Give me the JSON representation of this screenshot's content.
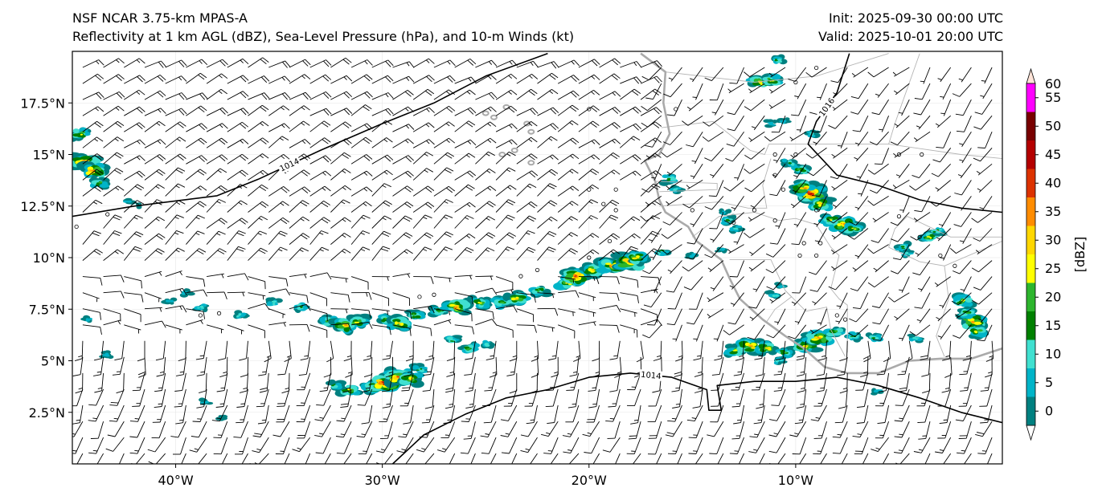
{
  "titles": {
    "left_line1": "NSF NCAR 3.75-km MPAS-A",
    "left_line2": "Reflectivity at 1 km AGL (dBZ), Sea-Level Pressure (hPa), and 10-m Winds (kt)",
    "right_line1": "Init: 2025-09-30 00:00 UTC",
    "right_line2": "Valid: 2025-10-01 20:00 UTC"
  },
  "map": {
    "lon_range": [
      -45,
      0
    ],
    "lat_range": [
      0,
      20
    ],
    "lon_ticks": [
      {
        "value": -40,
        "label": "40°W"
      },
      {
        "value": -30,
        "label": "30°W"
      },
      {
        "value": -20,
        "label": "20°W"
      },
      {
        "value": -10,
        "label": "10°W"
      }
    ],
    "lat_ticks": [
      {
        "value": 2.5,
        "label": "2.5°N"
      },
      {
        "value": 5,
        "label": "5°N"
      },
      {
        "value": 7.5,
        "label": "7.5°N"
      },
      {
        "value": 10,
        "label": "10°N"
      },
      {
        "value": 12.5,
        "label": "12.5°N"
      },
      {
        "value": 15,
        "label": "15°N"
      },
      {
        "value": 17.5,
        "label": "17.5°N"
      }
    ],
    "pressure_contours": [
      {
        "label": "1014",
        "points": [
          [
            -45,
            12.0
          ],
          [
            -42,
            12.5
          ],
          [
            -38,
            13.0
          ],
          [
            -36,
            13.8
          ],
          [
            -33,
            15.2
          ],
          [
            -30,
            16.5
          ],
          [
            -27.5,
            17.5
          ],
          [
            -25,
            18.8
          ],
          [
            -22,
            19.9
          ]
        ]
      },
      {
        "label": "1014",
        "points": [
          [
            -29.5,
            0
          ],
          [
            -28,
            1.4
          ],
          [
            -26,
            2.4
          ],
          [
            -24,
            3.2
          ],
          [
            -22,
            3.6
          ],
          [
            -20,
            4.2
          ],
          [
            -18,
            4.4
          ],
          [
            -16,
            4.2
          ],
          [
            -14.3,
            3.6
          ],
          [
            -14.2,
            2.6
          ],
          [
            -13.6,
            2.6
          ],
          [
            -13.8,
            3.8
          ],
          [
            -12,
            4.0
          ],
          [
            -10,
            4.0
          ],
          [
            -8,
            4.2
          ],
          [
            -6,
            3.8
          ],
          [
            -4,
            3.2
          ],
          [
            -2,
            2.5
          ],
          [
            0,
            2.0
          ]
        ]
      },
      {
        "label": "1016",
        "points": [
          [
            -7.4,
            19.9
          ],
          [
            -8.0,
            18.0
          ],
          [
            -9.0,
            16.6
          ],
          [
            -9.4,
            15.5
          ],
          [
            -8.0,
            14.0
          ],
          [
            -6.0,
            13.5
          ],
          [
            -4.0,
            12.8
          ],
          [
            -2.0,
            12.4
          ],
          [
            0,
            12.2
          ]
        ]
      }
    ],
    "coastlines": [
      [
        [
          -17.5,
          19.9
        ],
        [
          -16.3,
          19.0
        ],
        [
          -16.4,
          17.5
        ],
        [
          -16.1,
          16.0
        ],
        [
          -16.6,
          15.0
        ],
        [
          -17.3,
          14.7
        ],
        [
          -16.8,
          13.7
        ],
        [
          -16.6,
          12.8
        ],
        [
          -16.3,
          12.2
        ],
        [
          -15.2,
          11.5
        ],
        [
          -14.8,
          10.8
        ],
        [
          -13.6,
          9.9
        ],
        [
          -13.2,
          9.0
        ],
        [
          -12.7,
          8.0
        ],
        [
          -11.6,
          7.0
        ],
        [
          -10.5,
          6.2
        ],
        [
          -9.6,
          5.6
        ],
        [
          -8.6,
          4.7
        ],
        [
          -7.5,
          4.4
        ],
        [
          -6.0,
          4.4
        ],
        [
          -4.5,
          5.0
        ],
        [
          -3.0,
          5.1
        ],
        [
          -1.5,
          5.1
        ],
        [
          0,
          5.6
        ]
      ]
    ],
    "islands": [
      [
        -24.6,
        16.8
      ],
      [
        -23.0,
        16.5
      ],
      [
        -22.8,
        16.1
      ],
      [
        -24.2,
        15.0
      ],
      [
        -23.6,
        15.2
      ],
      [
        -22.8,
        14.6
      ],
      [
        -25.0,
        17.0
      ],
      [
        -24.0,
        17.3
      ]
    ],
    "borders": [
      [
        [
          -16.3,
          19.0
        ],
        [
          -12,
          18.5
        ],
        [
          -9,
          18.8
        ],
        [
          -5.5,
          19.9
        ]
      ],
      [
        [
          -16.5,
          16.3
        ],
        [
          -14,
          16.6
        ],
        [
          -12.2,
          15.2
        ],
        [
          -11.5,
          15.0
        ],
        [
          -11.3,
          15.5
        ],
        [
          -5.5,
          15.5
        ],
        [
          -5.2,
          16.5
        ],
        [
          -4,
          19.9
        ]
      ],
      [
        [
          -16.8,
          13.7
        ],
        [
          -13.8,
          13.6
        ],
        [
          -13.8,
          13.3
        ],
        [
          -16.6,
          13.2
        ]
      ],
      [
        [
          -16.6,
          12.5
        ],
        [
          -13.7,
          12.7
        ],
        [
          -12.3,
          12.4
        ],
        [
          -11.4,
          12.4
        ],
        [
          -11.6,
          13.5
        ],
        [
          -11.2,
          14.8
        ]
      ],
      [
        [
          -15.0,
          11.0
        ],
        [
          -13.7,
          12.0
        ],
        [
          -12.0,
          12.2
        ],
        [
          -10.8,
          11.8
        ],
        [
          -10.0,
          11.9
        ],
        [
          -9.0,
          11.6
        ],
        [
          -8.3,
          10.5
        ],
        [
          -7.9,
          10.1
        ],
        [
          -8.3,
          8.5
        ],
        [
          -7.9,
          8.0
        ],
        [
          -7.5,
          7.7
        ],
        [
          -7.5,
          5.4
        ]
      ],
      [
        [
          -13.2,
          9.9
        ],
        [
          -12.5,
          9.9
        ],
        [
          -11.2,
          9.9
        ],
        [
          -10.5,
          8.4
        ],
        [
          -10.2,
          8.1
        ],
        [
          -11.0,
          7.5
        ],
        [
          -11.4,
          6.9
        ]
      ],
      [
        [
          -10.5,
          8.4
        ],
        [
          -9.5,
          7.4
        ],
        [
          -8.5,
          7.6
        ],
        [
          -8.3,
          6.5
        ],
        [
          -7.6,
          5.2
        ]
      ],
      [
        [
          -5.5,
          10.5
        ],
        [
          -4.0,
          9.8
        ],
        [
          -2.8,
          9.6
        ],
        [
          -2.6,
          8.0
        ],
        [
          -3.2,
          6.2
        ],
        [
          -2.8,
          5.2
        ]
      ],
      [
        [
          -5.5,
          10.5
        ],
        [
          -5.2,
          11.4
        ],
        [
          -4.6,
          12.0
        ],
        [
          -2.5,
          11.0
        ],
        [
          0,
          11.0
        ]
      ],
      [
        [
          -2.8,
          9.6
        ],
        [
          0,
          10.8
        ]
      ],
      [
        [
          -5.5,
          15.5
        ],
        [
          -2.0,
          15.0
        ],
        [
          0,
          14.8
        ]
      ]
    ],
    "calm_circles": [
      [
        -43.3,
        12.1
      ],
      [
        -44.8,
        11.5
      ],
      [
        -37.9,
        7.3
      ],
      [
        -38.8,
        7.2
      ],
      [
        -28.2,
        8.1
      ],
      [
        -27.5,
        8.2
      ],
      [
        -23.3,
        9.1
      ],
      [
        -22.5,
        9.4
      ],
      [
        -20.0,
        10.0
      ],
      [
        -19.0,
        10.8
      ],
      [
        -18.7,
        12.3
      ],
      [
        -19.3,
        12.6
      ],
      [
        -18.7,
        13.3
      ],
      [
        -20.0,
        13.3
      ],
      [
        -20.0,
        17.2
      ],
      [
        -15.8,
        17.2
      ],
      [
        -15.0,
        12.3
      ],
      [
        -12.0,
        12.3
      ],
      [
        -13.0,
        11.7
      ],
      [
        -11.0,
        11.8
      ],
      [
        -9.6,
        10.7
      ],
      [
        -9.8,
        10.1
      ],
      [
        -9.0,
        10.1
      ],
      [
        -10.6,
        13.3
      ],
      [
        -11.0,
        14.0
      ],
      [
        -11.0,
        15.0
      ],
      [
        -10.0,
        15.0
      ],
      [
        -9.0,
        12.3
      ],
      [
        -8.8,
        10.7
      ],
      [
        -3.9,
        15.0
      ],
      [
        -5.0,
        15.0
      ],
      [
        -4.0,
        11.0
      ],
      [
        -3.0,
        10.1
      ],
      [
        -2.3,
        9.6
      ],
      [
        -5.0,
        12.0
      ],
      [
        -7.6,
        7.0
      ],
      [
        -8.0,
        7.2
      ],
      [
        -10.0,
        18.5
      ],
      [
        -9.0,
        19.2
      ]
    ],
    "wind_grid": {
      "lon_step": 1.0,
      "lat_step": 0.78,
      "flow": "easterly trades, NE north of ITCZ, SE/S south of ITCZ"
    },
    "reflectivity_cells": [
      {
        "lon": -44.4,
        "lat": 14.6,
        "dbz": 48
      },
      {
        "lon": -44.0,
        "lat": 14.2,
        "dbz": 42
      },
      {
        "lon": -44.6,
        "lat": 16.0,
        "dbz": 30
      },
      {
        "lon": -43.7,
        "lat": 13.6,
        "dbz": 25
      },
      {
        "lon": -42.3,
        "lat": 12.7,
        "dbz": 10
      },
      {
        "lon": -41.6,
        "lat": 12.5,
        "dbz": 8
      },
      {
        "lon": -39.5,
        "lat": 8.3,
        "dbz": 12
      },
      {
        "lon": -40.3,
        "lat": 7.9,
        "dbz": 10
      },
      {
        "lon": -38.8,
        "lat": 7.6,
        "dbz": 15
      },
      {
        "lon": -36.9,
        "lat": 7.2,
        "dbz": 15
      },
      {
        "lon": -35.3,
        "lat": 7.8,
        "dbz": 18
      },
      {
        "lon": -34.0,
        "lat": 7.6,
        "dbz": 20
      },
      {
        "lon": -32.6,
        "lat": 6.9,
        "dbz": 28
      },
      {
        "lon": -31.8,
        "lat": 6.7,
        "dbz": 40
      },
      {
        "lon": -31.2,
        "lat": 6.9,
        "dbz": 30
      },
      {
        "lon": -29.8,
        "lat": 7.0,
        "dbz": 25
      },
      {
        "lon": -29.2,
        "lat": 6.8,
        "dbz": 38
      },
      {
        "lon": -28.4,
        "lat": 7.2,
        "dbz": 25
      },
      {
        "lon": -27.2,
        "lat": 7.4,
        "dbz": 25
      },
      {
        "lon": -26.4,
        "lat": 7.6,
        "dbz": 42
      },
      {
        "lon": -25.3,
        "lat": 7.8,
        "dbz": 30
      },
      {
        "lon": -24.2,
        "lat": 7.8,
        "dbz": 28
      },
      {
        "lon": -23.5,
        "lat": 8.0,
        "dbz": 35
      },
      {
        "lon": -22.4,
        "lat": 8.4,
        "dbz": 25
      },
      {
        "lon": -21.0,
        "lat": 8.8,
        "dbz": 35
      },
      {
        "lon": -20.6,
        "lat": 9.1,
        "dbz": 45
      },
      {
        "lon": -19.8,
        "lat": 9.4,
        "dbz": 38
      },
      {
        "lon": -18.9,
        "lat": 9.6,
        "dbz": 40
      },
      {
        "lon": -18.0,
        "lat": 9.8,
        "dbz": 48
      },
      {
        "lon": -17.7,
        "lat": 10.0,
        "dbz": 35
      },
      {
        "lon": -16.5,
        "lat": 10.3,
        "dbz": 20
      },
      {
        "lon": -15.0,
        "lat": 10.1,
        "dbz": 12
      },
      {
        "lon": -30.5,
        "lat": 3.7,
        "dbz": 35
      },
      {
        "lon": -29.9,
        "lat": 3.9,
        "dbz": 50
      },
      {
        "lon": -29.2,
        "lat": 4.2,
        "dbz": 45
      },
      {
        "lon": -31.6,
        "lat": 3.6,
        "dbz": 30
      },
      {
        "lon": -28.6,
        "lat": 4.1,
        "dbz": 35
      },
      {
        "lon": -32.3,
        "lat": 3.8,
        "dbz": 20
      },
      {
        "lon": -28.2,
        "lat": 4.6,
        "dbz": 20
      },
      {
        "lon": -38.6,
        "lat": 3.0,
        "dbz": 10
      },
      {
        "lon": -37.8,
        "lat": 2.2,
        "dbz": 8
      },
      {
        "lon": -43.3,
        "lat": 5.3,
        "dbz": 12
      },
      {
        "lon": -44.2,
        "lat": 7.0,
        "dbz": 10
      },
      {
        "lon": -26.6,
        "lat": 6.0,
        "dbz": 20
      },
      {
        "lon": -25.8,
        "lat": 5.6,
        "dbz": 25
      },
      {
        "lon": -25.0,
        "lat": 5.8,
        "dbz": 18
      },
      {
        "lon": -12.9,
        "lat": 5.5,
        "dbz": 30
      },
      {
        "lon": -12.2,
        "lat": 5.7,
        "dbz": 40
      },
      {
        "lon": -11.4,
        "lat": 5.6,
        "dbz": 35
      },
      {
        "lon": -10.5,
        "lat": 5.4,
        "dbz": 25
      },
      {
        "lon": -9.5,
        "lat": 5.7,
        "dbz": 38
      },
      {
        "lon": -8.9,
        "lat": 6.1,
        "dbz": 42
      },
      {
        "lon": -8.1,
        "lat": 6.4,
        "dbz": 28
      },
      {
        "lon": -7.2,
        "lat": 6.2,
        "dbz": 20
      },
      {
        "lon": -6.2,
        "lat": 6.1,
        "dbz": 20
      },
      {
        "lon": -10.8,
        "lat": 5.0,
        "dbz": 15
      },
      {
        "lon": -9.3,
        "lat": 13.1,
        "dbz": 50
      },
      {
        "lon": -9.6,
        "lat": 13.4,
        "dbz": 40
      },
      {
        "lon": -8.8,
        "lat": 12.6,
        "dbz": 35
      },
      {
        "lon": -8.3,
        "lat": 11.8,
        "dbz": 30
      },
      {
        "lon": -7.7,
        "lat": 11.6,
        "dbz": 40
      },
      {
        "lon": -7.2,
        "lat": 11.4,
        "dbz": 30
      },
      {
        "lon": -9.8,
        "lat": 14.3,
        "dbz": 28
      },
      {
        "lon": -10.3,
        "lat": 14.6,
        "dbz": 20
      },
      {
        "lon": -9.2,
        "lat": 16.0,
        "dbz": 15
      },
      {
        "lon": -11.7,
        "lat": 18.5,
        "dbz": 38
      },
      {
        "lon": -11.2,
        "lat": 18.6,
        "dbz": 30
      },
      {
        "lon": -10.9,
        "lat": 19.6,
        "dbz": 20
      },
      {
        "lon": -11.2,
        "lat": 16.5,
        "dbz": 12
      },
      {
        "lon": -10.6,
        "lat": 16.6,
        "dbz": 10
      },
      {
        "lon": -13.3,
        "lat": 11.8,
        "dbz": 20
      },
      {
        "lon": -12.9,
        "lat": 11.4,
        "dbz": 15
      },
      {
        "lon": -13.4,
        "lat": 12.2,
        "dbz": 12
      },
      {
        "lon": -16.1,
        "lat": 13.8,
        "dbz": 22
      },
      {
        "lon": -15.8,
        "lat": 13.3,
        "dbz": 15
      },
      {
        "lon": -1.9,
        "lat": 7.9,
        "dbz": 30
      },
      {
        "lon": -1.4,
        "lat": 6.9,
        "dbz": 42
      },
      {
        "lon": -1.2,
        "lat": 6.4,
        "dbz": 30
      },
      {
        "lon": -1.7,
        "lat": 7.3,
        "dbz": 25
      },
      {
        "lon": -3.5,
        "lat": 11.0,
        "dbz": 30
      },
      {
        "lon": -3.2,
        "lat": 11.3,
        "dbz": 20
      },
      {
        "lon": -4.8,
        "lat": 10.5,
        "dbz": 20
      },
      {
        "lon": -4.6,
        "lat": 10.2,
        "dbz": 15
      },
      {
        "lon": -11.0,
        "lat": 8.2,
        "dbz": 15
      },
      {
        "lon": -10.7,
        "lat": 8.6,
        "dbz": 12
      },
      {
        "lon": -13.6,
        "lat": 10.4,
        "dbz": 10
      },
      {
        "lon": -6.0,
        "lat": 3.5,
        "dbz": 10
      },
      {
        "lon": -4.2,
        "lat": 6.1,
        "dbz": 15
      }
    ]
  },
  "colorbar": {
    "label": "[dBZ]",
    "levels": [
      0,
      5,
      10,
      15,
      20,
      25,
      30,
      35,
      40,
      45,
      50,
      55,
      60
    ],
    "tick_labels": [
      "0",
      "5",
      "10",
      "15",
      "20",
      "25",
      "30",
      "35",
      "40",
      "45",
      "50",
      "55",
      "60"
    ],
    "colors": [
      "#008080",
      "#00b4c8",
      "#40e0d0",
      "#008000",
      "#2db52d",
      "#ffff00",
      "#ffd700",
      "#ff8c00",
      "#dc3200",
      "#b40000",
      "#780000",
      "#ff00ff"
    ],
    "under_color": "#ffffff",
    "over_color": "#ffe4d8",
    "extend": "both"
  },
  "colors": {
    "coast": "#aaaaaa",
    "border": "#b4b4b4",
    "pressure": "#000000",
    "barb": "#000000",
    "grid": "#e6e6e6"
  }
}
